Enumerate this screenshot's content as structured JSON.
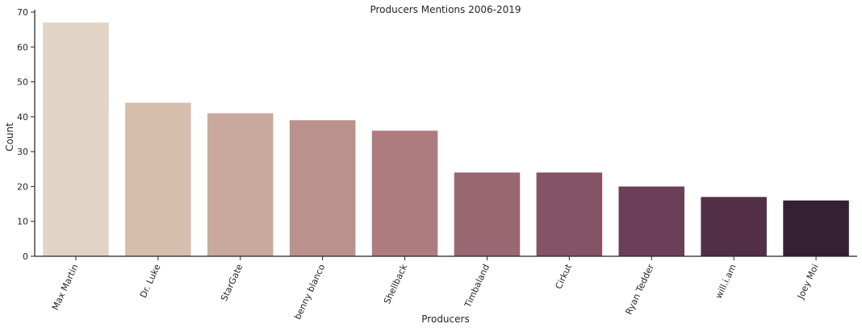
{
  "chart_data": {
    "type": "bar",
    "title": "Producers Mentions 2006-2019",
    "xlabel": "Producers",
    "ylabel": "Count",
    "ylim": [
      0,
      70
    ],
    "yticks": [
      0,
      10,
      20,
      30,
      40,
      50,
      60,
      70
    ],
    "grid": false,
    "legend": "none",
    "categories": [
      "Max Martin",
      "Dr. Luke",
      "StarGate",
      "benny blanco",
      "Shellback",
      "Timbaland",
      "Cirkut",
      "Ryan Tedder",
      "will.i.am",
      "Joey Moi"
    ],
    "values": [
      67,
      44,
      41,
      39,
      36,
      24,
      24,
      20,
      17,
      16
    ],
    "colors": [
      "#e2d4c4",
      "#d6bead",
      "#c9a99d",
      "#bb918b",
      "#ae7c7f",
      "#9a6773",
      "#845366",
      "#6b3f58",
      "#522f47",
      "#351f33"
    ]
  }
}
